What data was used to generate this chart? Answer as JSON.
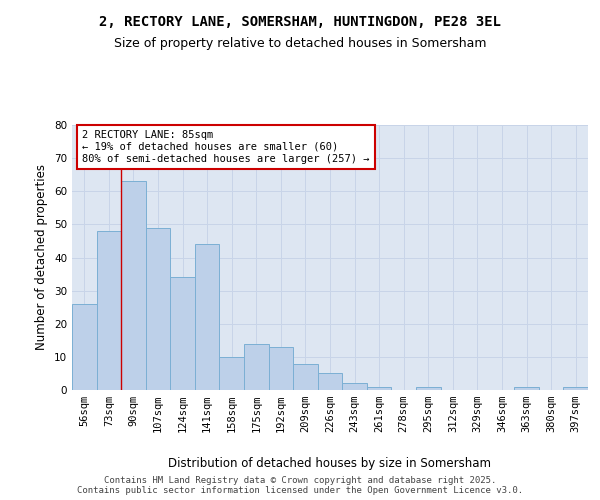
{
  "title_line1": "2, RECTORY LANE, SOMERSHAM, HUNTINGDON, PE28 3EL",
  "title_line2": "Size of property relative to detached houses in Somersham",
  "xlabel": "Distribution of detached houses by size in Somersham",
  "ylabel": "Number of detached properties",
  "categories": [
    "56sqm",
    "73sqm",
    "90sqm",
    "107sqm",
    "124sqm",
    "141sqm",
    "158sqm",
    "175sqm",
    "192sqm",
    "209sqm",
    "226sqm",
    "243sqm",
    "261sqm",
    "278sqm",
    "295sqm",
    "312sqm",
    "329sqm",
    "346sqm",
    "363sqm",
    "380sqm",
    "397sqm"
  ],
  "values": [
    26,
    48,
    63,
    49,
    34,
    44,
    10,
    14,
    13,
    8,
    5,
    2,
    1,
    0,
    1,
    0,
    0,
    0,
    1,
    0,
    1
  ],
  "bar_color": "#bdd0e9",
  "bar_edge_color": "#7bafd4",
  "grid_color": "#c8d4e8",
  "bg_color": "#dde6f2",
  "red_line_x": 1.5,
  "annotation_text": "2 RECTORY LANE: 85sqm\n← 19% of detached houses are smaller (60)\n80% of semi-detached houses are larger (257) →",
  "annotation_box_color": "#ffffff",
  "annotation_border_color": "#cc0000",
  "ylim": [
    0,
    80
  ],
  "yticks": [
    0,
    10,
    20,
    30,
    40,
    50,
    60,
    70,
    80
  ],
  "footer_line1": "Contains HM Land Registry data © Crown copyright and database right 2025.",
  "footer_line2": "Contains public sector information licensed under the Open Government Licence v3.0.",
  "title_fontsize": 10,
  "subtitle_fontsize": 9,
  "axis_label_fontsize": 8.5,
  "tick_fontsize": 7.5,
  "annotation_fontsize": 7.5,
  "footer_fontsize": 6.5
}
